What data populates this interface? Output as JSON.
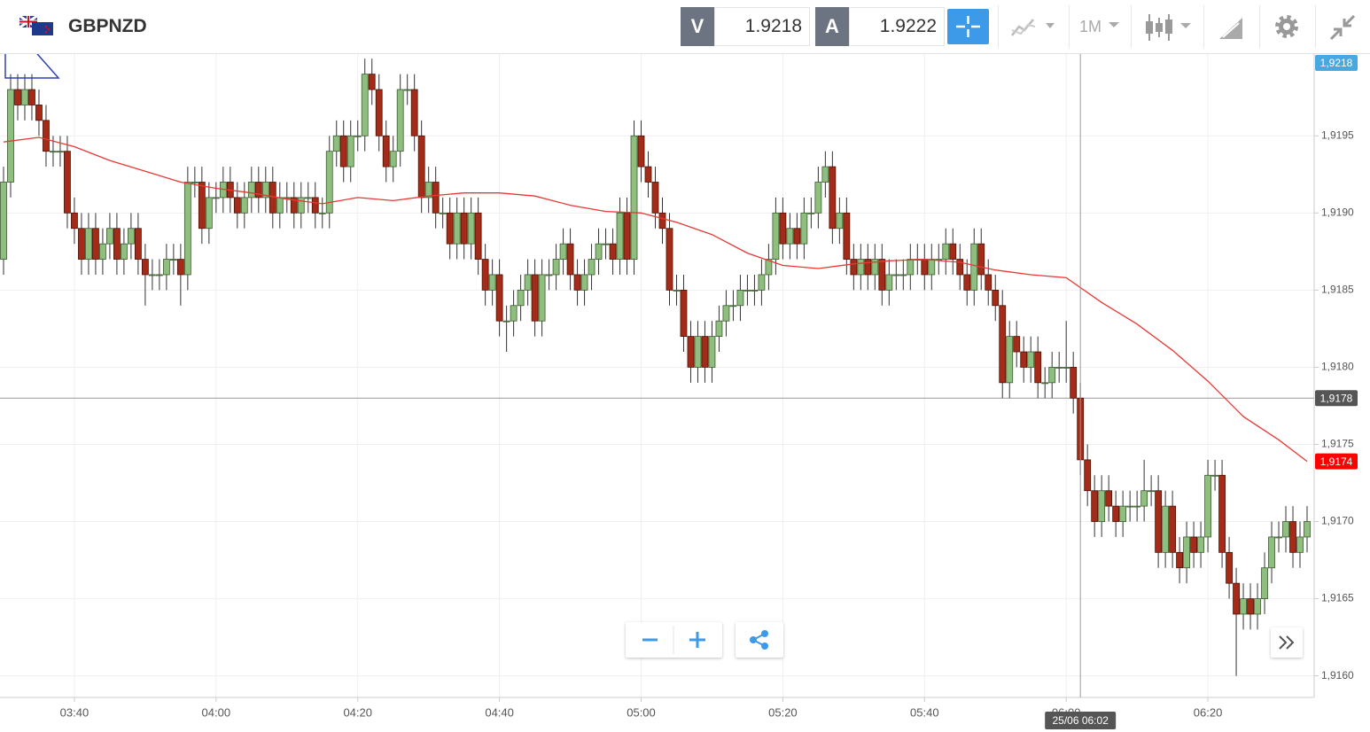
{
  "header": {
    "symbol": "GBPNZD",
    "sell_label": "V",
    "sell_price": "1.9218",
    "buy_label": "A",
    "buy_price": "1.9222",
    "interval": "1M"
  },
  "chart_data": {
    "type": "candlestick",
    "x": [
      "03:30",
      "03:31",
      "03:32",
      "03:33",
      "03:34",
      "03:35",
      "03:36",
      "03:37",
      "03:38",
      "03:39",
      "03:40",
      "03:41",
      "03:42",
      "03:43",
      "03:44",
      "03:45",
      "03:46",
      "03:47",
      "03:48",
      "03:49",
      "03:50",
      "03:51",
      "03:52",
      "03:53",
      "03:54",
      "03:55",
      "03:56",
      "03:57",
      "03:58",
      "03:59",
      "04:00",
      "04:01",
      "04:02",
      "04:03",
      "04:04",
      "04:05",
      "04:06",
      "04:07",
      "04:08",
      "04:09",
      "04:10",
      "04:11",
      "04:12",
      "04:13",
      "04:14",
      "04:15",
      "04:16",
      "04:17",
      "04:18",
      "04:19",
      "04:20",
      "04:21",
      "04:22",
      "04:23",
      "04:24",
      "04:25",
      "04:26",
      "04:27",
      "04:28",
      "04:29",
      "04:30",
      "04:31",
      "04:32",
      "04:33",
      "04:34",
      "04:35",
      "04:36",
      "04:37",
      "04:38",
      "04:39",
      "04:40",
      "04:41",
      "04:42",
      "04:43",
      "04:44",
      "04:45",
      "04:46",
      "04:47",
      "04:48",
      "04:49",
      "04:50",
      "04:51",
      "04:52",
      "04:53",
      "04:54",
      "04:55",
      "04:56",
      "04:57",
      "04:58",
      "04:59",
      "05:00",
      "05:01",
      "05:02",
      "05:03",
      "05:04",
      "05:05",
      "05:06",
      "05:07",
      "05:08",
      "05:09",
      "05:10",
      "05:11",
      "05:12",
      "05:13",
      "05:14",
      "05:15",
      "05:16",
      "05:17",
      "05:18",
      "05:19",
      "05:20",
      "05:21",
      "05:22",
      "05:23",
      "05:24",
      "05:25",
      "05:26",
      "05:27",
      "05:28",
      "05:29",
      "05:30",
      "05:31",
      "05:32",
      "05:33",
      "05:34",
      "05:35",
      "05:36",
      "05:37",
      "05:38",
      "05:39",
      "05:40",
      "05:41",
      "05:42",
      "05:43",
      "05:44",
      "05:45",
      "05:46",
      "05:47",
      "05:48",
      "05:49",
      "05:50",
      "05:51",
      "05:52",
      "05:53",
      "05:54",
      "05:55",
      "05:56",
      "05:57",
      "05:58",
      "05:59",
      "06:00",
      "06:01",
      "06:02",
      "06:03",
      "06:04",
      "06:05",
      "06:06",
      "06:07",
      "06:08",
      "06:09",
      "06:10",
      "06:11",
      "06:12",
      "06:13",
      "06:14",
      "06:15",
      "06:16",
      "06:17",
      "06:18",
      "06:19",
      "06:20",
      "06:21",
      "06:22",
      "06:23",
      "06:24",
      "06:25",
      "06:26",
      "06:27",
      "06:28",
      "06:29",
      "06:30",
      "06:31",
      "06:32",
      "06:33",
      "06:34"
    ],
    "open": [
      1.9187,
      1.9192,
      1.9198,
      1.9197,
      1.9198,
      1.9197,
      1.9196,
      1.9194,
      1.9194,
      1.9194,
      1.919,
      1.9189,
      1.9187,
      1.9189,
      1.9187,
      1.9188,
      1.9189,
      1.9187,
      1.9188,
      1.9189,
      1.9187,
      1.9186,
      1.9186,
      1.9186,
      1.9187,
      1.9187,
      1.9186,
      1.9192,
      1.9192,
      1.9189,
      1.9191,
      1.9191,
      1.9192,
      1.9191,
      1.919,
      1.9191,
      1.9192,
      1.9191,
      1.9192,
      1.919,
      1.9191,
      1.9191,
      1.919,
      1.9191,
      1.9191,
      1.919,
      1.919,
      1.9194,
      1.9195,
      1.9193,
      1.9195,
      1.9195,
      1.9199,
      1.9198,
      1.9195,
      1.9193,
      1.9194,
      1.9198,
      1.9198,
      1.9195,
      1.9191,
      1.9192,
      1.919,
      1.919,
      1.9188,
      1.919,
      1.9188,
      1.919,
      1.9187,
      1.9185,
      1.9186,
      1.9183,
      1.9183,
      1.9184,
      1.9185,
      1.9186,
      1.9183,
      1.9186,
      1.9186,
      1.9187,
      1.9188,
      1.9186,
      1.9185,
      1.9186,
      1.9187,
      1.9188,
      1.9188,
      1.9187,
      1.919,
      1.9187,
      1.9195,
      1.9193,
      1.9192,
      1.919,
      1.9189,
      1.9185,
      1.9185,
      1.9182,
      1.918,
      1.9182,
      1.918,
      1.9182,
      1.9183,
      1.9184,
      1.9184,
      1.9185,
      1.9185,
      1.9185,
      1.9186,
      1.9187,
      1.919,
      1.9188,
      1.9189,
      1.9188,
      1.919,
      1.919,
      1.9192,
      1.9193,
      1.9189,
      1.919,
      1.9187,
      1.9186,
      1.9187,
      1.9186,
      1.9187,
      1.9185,
      1.9186,
      1.9186,
      1.9186,
      1.9187,
      1.9187,
      1.9186,
      1.9187,
      1.9187,
      1.9188,
      1.9187,
      1.9186,
      1.9185,
      1.9188,
      1.9186,
      1.9185,
      1.9184,
      1.9179,
      1.9182,
      1.9181,
      1.918,
      1.9181,
      1.9179,
      1.9179,
      1.918,
      1.918,
      1.918,
      1.9178,
      1.9174,
      1.9172,
      1.917,
      1.9172,
      1.9171,
      1.917,
      1.9171,
      1.9171,
      1.9171,
      1.9172,
      1.9172,
      1.9168,
      1.9171,
      1.9168,
      1.9167,
      1.9169,
      1.9168,
      1.9169,
      1.9173,
      1.9173,
      1.9168,
      1.9166,
      1.9164,
      1.9165,
      1.9164,
      1.9165,
      1.9167,
      1.9169,
      1.9169,
      1.917,
      1.9168,
      1.9169
    ],
    "high": [
      1.9193,
      1.9199,
      1.9199,
      1.9199,
      1.9199,
      1.9198,
      1.9197,
      1.9195,
      1.9195,
      1.9195,
      1.9191,
      1.919,
      1.919,
      1.919,
      1.9189,
      1.919,
      1.919,
      1.9189,
      1.919,
      1.919,
      1.9188,
      1.9187,
      1.9187,
      1.9188,
      1.9188,
      1.9188,
      1.9193,
      1.9193,
      1.9193,
      1.9192,
      1.9192,
      1.9193,
      1.9193,
      1.9192,
      1.9192,
      1.9193,
      1.9193,
      1.9193,
      1.9193,
      1.9192,
      1.9192,
      1.9192,
      1.9192,
      1.9192,
      1.9192,
      1.9191,
      1.9195,
      1.9196,
      1.9196,
      1.9196,
      1.9196,
      1.92,
      1.92,
      1.9199,
      1.9196,
      1.9195,
      1.9199,
      1.9199,
      1.9199,
      1.9196,
      1.9193,
      1.9193,
      1.9191,
      1.9191,
      1.9191,
      1.9191,
      1.9191,
      1.9191,
      1.9188,
      1.9187,
      1.9187,
      1.9184,
      1.9185,
      1.9186,
      1.9187,
      1.9187,
      1.9187,
      1.9187,
      1.9188,
      1.9189,
      1.9189,
      1.9187,
      1.9187,
      1.9188,
      1.9189,
      1.9189,
      1.9189,
      1.9191,
      1.9191,
      1.9196,
      1.9196,
      1.9194,
      1.9193,
      1.9191,
      1.919,
      1.9186,
      1.9186,
      1.9183,
      1.9183,
      1.9183,
      1.9183,
      1.9184,
      1.9185,
      1.9185,
      1.9186,
      1.9186,
      1.9186,
      1.9187,
      1.9188,
      1.9191,
      1.9191,
      1.919,
      1.919,
      1.9191,
      1.9191,
      1.9193,
      1.9194,
      1.9194,
      1.9191,
      1.9191,
      1.9188,
      1.9188,
      1.9188,
      1.9188,
      1.9188,
      1.9187,
      1.9187,
      1.9187,
      1.9188,
      1.9188,
      1.9188,
      1.9188,
      1.9188,
      1.9189,
      1.9189,
      1.9188,
      1.9187,
      1.9189,
      1.9189,
      1.9187,
      1.9186,
      1.9185,
      1.9183,
      1.9183,
      1.9182,
      1.9182,
      1.9182,
      1.918,
      1.9181,
      1.9181,
      1.9183,
      1.9181,
      1.9179,
      1.9175,
      1.9173,
      1.9173,
      1.9173,
      1.9172,
      1.9172,
      1.9172,
      1.9172,
      1.9174,
      1.9173,
      1.9173,
      1.9172,
      1.9172,
      1.9169,
      1.917,
      1.917,
      1.917,
      1.9174,
      1.9174,
      1.9174,
      1.9169,
      1.9167,
      1.9166,
      1.9166,
      1.9166,
      1.9168,
      1.917,
      1.917,
      1.9171,
      1.9171,
      1.917,
      1.9171
    ],
    "low": [
      1.9186,
      1.9191,
      1.9196,
      1.9196,
      1.9196,
      1.9195,
      1.9193,
      1.9193,
      1.9193,
      1.9189,
      1.9188,
      1.9186,
      1.9186,
      1.9186,
      1.9186,
      1.9187,
      1.9186,
      1.9186,
      1.9187,
      1.9186,
      1.9184,
      1.9185,
      1.9185,
      1.9185,
      1.9186,
      1.9184,
      1.9185,
      1.9191,
      1.9188,
      1.9188,
      1.919,
      1.919,
      1.919,
      1.9189,
      1.9189,
      1.919,
      1.919,
      1.919,
      1.9189,
      1.9189,
      1.919,
      1.9189,
      1.9189,
      1.919,
      1.9189,
      1.9189,
      1.9189,
      1.9193,
      1.9192,
      1.9192,
      1.9194,
      1.9194,
      1.9197,
      1.9194,
      1.9192,
      1.9192,
      1.9193,
      1.9197,
      1.9194,
      1.919,
      1.919,
      1.9189,
      1.9189,
      1.9187,
      1.9187,
      1.9187,
      1.9187,
      1.9186,
      1.9184,
      1.9184,
      1.9182,
      1.9181,
      1.9182,
      1.9183,
      1.9184,
      1.9182,
      1.9182,
      1.9185,
      1.9185,
      1.9186,
      1.9185,
      1.9184,
      1.9184,
      1.9185,
      1.9186,
      1.9187,
      1.9186,
      1.9186,
      1.9186,
      1.9186,
      1.9192,
      1.9191,
      1.9189,
      1.9188,
      1.9184,
      1.9184,
      1.9181,
      1.9179,
      1.9179,
      1.9179,
      1.9179,
      1.9181,
      1.9182,
      1.9183,
      1.9183,
      1.9184,
      1.9184,
      1.9184,
      1.9185,
      1.9186,
      1.9187,
      1.9187,
      1.9187,
      1.9187,
      1.9189,
      1.9189,
      1.9191,
      1.9188,
      1.9188,
      1.9186,
      1.9185,
      1.9185,
      1.9185,
      1.9185,
      1.9184,
      1.9184,
      1.9185,
      1.9185,
      1.9185,
      1.9186,
      1.9185,
      1.9185,
      1.9186,
      1.9186,
      1.9186,
      1.9185,
      1.9184,
      1.9184,
      1.9185,
      1.9184,
      1.9183,
      1.9178,
      1.9178,
      1.918,
      1.9179,
      1.9179,
      1.9178,
      1.9178,
      1.9178,
      1.9179,
      1.9179,
      1.9177,
      1.9173,
      1.9171,
      1.9169,
      1.9169,
      1.917,
      1.9169,
      1.9169,
      1.917,
      1.917,
      1.917,
      1.9171,
      1.9167,
      1.9167,
      1.9167,
      1.9166,
      1.9166,
      1.9167,
      1.9167,
      1.9168,
      1.9172,
      1.9167,
      1.9165,
      1.916,
      1.9163,
      1.9163,
      1.9163,
      1.9164,
      1.9166,
      1.9168,
      1.9168,
      1.9167,
      1.9167,
      1.9168
    ],
    "close": [
      1.9192,
      1.9198,
      1.9197,
      1.9198,
      1.9197,
      1.9196,
      1.9194,
      1.9194,
      1.9194,
      1.919,
      1.9189,
      1.9187,
      1.9189,
      1.9187,
      1.9188,
      1.9189,
      1.9187,
      1.9188,
      1.9189,
      1.9187,
      1.9186,
      1.9186,
      1.9186,
      1.9187,
      1.9187,
      1.9186,
      1.9192,
      1.9192,
      1.9189,
      1.9191,
      1.9191,
      1.9192,
      1.9191,
      1.919,
      1.9191,
      1.9192,
      1.9191,
      1.9192,
      1.919,
      1.9191,
      1.9191,
      1.919,
      1.9191,
      1.9191,
      1.919,
      1.919,
      1.9194,
      1.9195,
      1.9193,
      1.9195,
      1.9195,
      1.9199,
      1.9198,
      1.9195,
      1.9193,
      1.9194,
      1.9198,
      1.9198,
      1.9195,
      1.9191,
      1.9192,
      1.919,
      1.919,
      1.9188,
      1.919,
      1.9188,
      1.919,
      1.9187,
      1.9185,
      1.9186,
      1.9183,
      1.9183,
      1.9184,
      1.9185,
      1.9186,
      1.9183,
      1.9186,
      1.9186,
      1.9187,
      1.9188,
      1.9186,
      1.9185,
      1.9186,
      1.9187,
      1.9188,
      1.9188,
      1.9187,
      1.919,
      1.9187,
      1.9195,
      1.9193,
      1.9192,
      1.919,
      1.9189,
      1.9185,
      1.9185,
      1.9182,
      1.918,
      1.9182,
      1.918,
      1.9182,
      1.9183,
      1.9184,
      1.9184,
      1.9185,
      1.9185,
      1.9185,
      1.9186,
      1.9187,
      1.919,
      1.9188,
      1.9189,
      1.9188,
      1.919,
      1.919,
      1.9192,
      1.9193,
      1.9189,
      1.919,
      1.9187,
      1.9186,
      1.9187,
      1.9186,
      1.9187,
      1.9185,
      1.9186,
      1.9186,
      1.9186,
      1.9187,
      1.9187,
      1.9186,
      1.9187,
      1.9187,
      1.9188,
      1.9187,
      1.9186,
      1.9185,
      1.9188,
      1.9186,
      1.9185,
      1.9184,
      1.9179,
      1.9182,
      1.9181,
      1.918,
      1.9181,
      1.9179,
      1.9179,
      1.918,
      1.918,
      1.918,
      1.9178,
      1.9174,
      1.9172,
      1.917,
      1.9172,
      1.9171,
      1.917,
      1.9171,
      1.9171,
      1.9171,
      1.9172,
      1.9172,
      1.9168,
      1.9171,
      1.9168,
      1.9167,
      1.9169,
      1.9168,
      1.9169,
      1.9173,
      1.9173,
      1.9168,
      1.9166,
      1.9164,
      1.9165,
      1.9164,
      1.9165,
      1.9167,
      1.9169,
      1.9169,
      1.917,
      1.9168,
      1.9169,
      1.917
    ],
    "up_color": "#8fbf7f",
    "down_color": "#a32b17",
    "ma": {
      "color": "#e53935",
      "x": [
        "03:30",
        "03:35",
        "03:40",
        "03:45",
        "03:50",
        "03:55",
        "04:00",
        "04:05",
        "04:10",
        "04:15",
        "04:20",
        "04:25",
        "04:30",
        "04:35",
        "04:40",
        "04:45",
        "04:50",
        "04:55",
        "05:00",
        "05:05",
        "05:10",
        "05:15",
        "05:20",
        "05:25",
        "05:30",
        "05:35",
        "05:40",
        "05:45",
        "05:50",
        "05:55",
        "06:00",
        "06:05",
        "06:10",
        "06:15",
        "06:20",
        "06:25",
        "06:30",
        "06:34"
      ],
      "values": [
        1.91946,
        1.91949,
        1.91943,
        1.91934,
        1.91927,
        1.9192,
        1.91916,
        1.91913,
        1.91909,
        1.91906,
        1.9191,
        1.91908,
        1.91911,
        1.91913,
        1.91913,
        1.91911,
        1.91905,
        1.91901,
        1.919,
        1.91894,
        1.91886,
        1.91874,
        1.91866,
        1.91864,
        1.91867,
        1.91869,
        1.9187,
        1.91868,
        1.91863,
        1.9186,
        1.91858,
        1.91842,
        1.91828,
        1.91811,
        1.91791,
        1.91768,
        1.91753,
        1.91739
      ]
    },
    "xlim": [
      "03:29",
      "06:35"
    ],
    "xticks": [
      "03:40",
      "04:00",
      "04:20",
      "04:40",
      "05:00",
      "05:20",
      "05:40",
      "06:00",
      "06:20"
    ],
    "ylim": [
      1.91586,
      1.92003
    ],
    "yticks": [
      {
        "value": 1.916,
        "label": "1,9160"
      },
      {
        "value": 1.9165,
        "label": "1,9165"
      },
      {
        "value": 1.917,
        "label": "1,9170"
      },
      {
        "value": 1.9175,
        "label": "1,9175"
      },
      {
        "value": 1.918,
        "label": "1,9180"
      },
      {
        "value": 1.9185,
        "label": "1,9185"
      },
      {
        "value": 1.919,
        "label": "1,9190"
      },
      {
        "value": 1.9195,
        "label": "1,9195"
      }
    ],
    "grid": true,
    "price_markers": [
      {
        "value": 1.9218,
        "label": "1,9218",
        "color": "#4aa8e0"
      },
      {
        "value": 1.91739,
        "label": "1,9174",
        "color": "#ff0000"
      }
    ],
    "crosshair": {
      "time": "06:02",
      "label": "25/06 06:02",
      "price": 1.9178,
      "price_label": "1,9178",
      "color": "#555555"
    }
  }
}
